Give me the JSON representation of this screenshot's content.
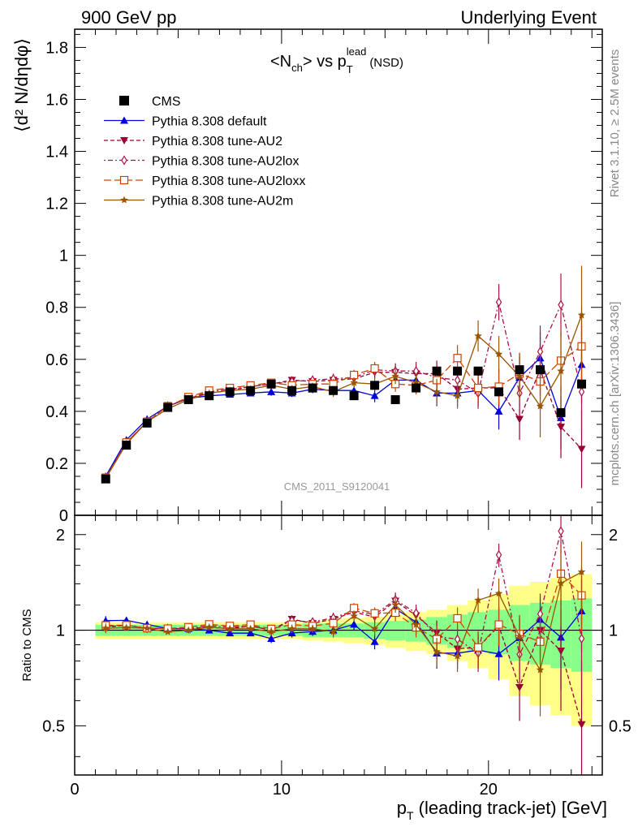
{
  "header": {
    "left": "900 GeV pp",
    "right": "Underlying Event"
  },
  "side_labels": {
    "rivet": "Rivet 3.1.10, ≥ 2.5M events",
    "mcplots": "mcplots.cern.ch [arXiv:1306.3436]"
  },
  "colors": {
    "cms": "#000000",
    "default": "#0000dd",
    "au2": "#990033",
    "au2lox": "#aa1144",
    "au2loxx": "#cc4400",
    "au2m": "#995500",
    "band_inner": "#88ff88",
    "band_outer": "#ffff88"
  },
  "chart_data": {
    "type": "line",
    "title_main": "<N",
    "title_sub": "ch",
    "title_mid": "> vs p",
    "title_sup": "lead",
    "title_sub2": "T",
    "title_tail": "(NSD)",
    "watermark": "CMS_2011_S9120041",
    "xlabel_main": "p",
    "xlabel_sub": "T",
    "xlabel_tail": " (leading track-jet) [GeV]",
    "ylabel": "⟨d² N/dηdφ⟩",
    "ratio_ylabel": "Ratio to CMS",
    "xlim": [
      0,
      25.5
    ],
    "ylim": [
      0,
      1.87
    ],
    "ratio_ylim": [
      0.35,
      2.3
    ],
    "log_ratio": true,
    "x_ticks": [
      0,
      10,
      20
    ],
    "y_ticks": [
      0,
      0.2,
      0.4,
      0.6,
      0.8,
      1,
      1.2,
      1.4,
      1.6,
      1.8
    ],
    "y_tick_labels": [
      "0",
      "0.2",
      "0.4",
      "0.6",
      "0.8",
      "1",
      "1.2",
      "1.4",
      "1.6",
      "1.8"
    ],
    "ratio_ticks": [
      0.5,
      1,
      2
    ],
    "ratio_tick_labels": [
      "0.5",
      "1",
      "2"
    ],
    "x": [
      1.5,
      2.5,
      3.5,
      4.5,
      5.5,
      6.5,
      7.5,
      8.5,
      9.5,
      10.5,
      11.5,
      12.5,
      13.5,
      14.5,
      15.5,
      16.5,
      17.5,
      18.5,
      19.5,
      20.5,
      21.5,
      22.5,
      23.5,
      24.5
    ],
    "cms": {
      "name": "CMS",
      "values": [
        0.14,
        0.27,
        0.355,
        0.415,
        0.445,
        0.46,
        0.475,
        0.48,
        0.505,
        0.48,
        0.49,
        0.48,
        0.46,
        0.5,
        0.445,
        0.49,
        0.555,
        0.555,
        0.555,
        0.475,
        0.56,
        0.56,
        0.395,
        0.505
      ],
      "band_inner": [
        0.04,
        0.04,
        0.04,
        0.04,
        0.04,
        0.04,
        0.04,
        0.04,
        0.04,
        0.04,
        0.05,
        0.05,
        0.05,
        0.06,
        0.07,
        0.08,
        0.1,
        0.12,
        0.14,
        0.16,
        0.2,
        0.22,
        0.24,
        0.26
      ],
      "band_outer": [
        0.06,
        0.06,
        0.06,
        0.06,
        0.06,
        0.06,
        0.06,
        0.06,
        0.06,
        0.06,
        0.07,
        0.08,
        0.09,
        0.1,
        0.12,
        0.14,
        0.16,
        0.2,
        0.24,
        0.3,
        0.38,
        0.42,
        0.46,
        0.5
      ]
    },
    "series": [
      {
        "name": "Pythia 8.308 default",
        "key": "default",
        "style": "solid",
        "marker": "triangle-up",
        "values": [
          0.15,
          0.29,
          0.37,
          0.42,
          0.45,
          0.46,
          0.465,
          0.47,
          0.475,
          0.47,
          0.485,
          0.48,
          0.48,
          0.46,
          0.52,
          0.52,
          0.47,
          0.47,
          0.48,
          0.4,
          0.53,
          0.605,
          0.375,
          0.58
        ],
        "err": [
          0.005,
          0.005,
          0.005,
          0.005,
          0.005,
          0.01,
          0.01,
          0.01,
          0.015,
          0.015,
          0.015,
          0.02,
          0.02,
          0.025,
          0.03,
          0.035,
          0.05,
          0.05,
          0.06,
          0.07,
          0.08,
          0.1,
          0.12,
          0.15
        ]
      },
      {
        "name": "Pythia 8.308 tune-AU2",
        "key": "au2",
        "style": "dashed",
        "marker": "triangle-down",
        "values": [
          0.143,
          0.28,
          0.36,
          0.42,
          0.45,
          0.47,
          0.48,
          0.495,
          0.505,
          0.52,
          0.515,
          0.52,
          0.525,
          0.55,
          0.55,
          0.545,
          0.545,
          0.485,
          0.49,
          0.49,
          0.37,
          0.56,
          0.34,
          0.255
        ],
        "err": [
          0.005,
          0.005,
          0.005,
          0.005,
          0.005,
          0.01,
          0.01,
          0.01,
          0.015,
          0.015,
          0.015,
          0.02,
          0.02,
          0.025,
          0.03,
          0.035,
          0.05,
          0.05,
          0.06,
          0.07,
          0.08,
          0.1,
          0.12,
          0.15
        ]
      },
      {
        "name": "Pythia 8.308 tune-AU2lox",
        "key": "au2lox",
        "style": "dashdot",
        "marker": "diamond",
        "values": [
          0.144,
          0.28,
          0.36,
          0.42,
          0.45,
          0.475,
          0.485,
          0.495,
          0.505,
          0.515,
          0.52,
          0.525,
          0.53,
          0.56,
          0.555,
          0.555,
          0.53,
          0.52,
          0.47,
          0.82,
          0.47,
          0.63,
          0.81,
          0.475
        ],
        "err": [
          0.005,
          0.005,
          0.005,
          0.005,
          0.005,
          0.01,
          0.01,
          0.01,
          0.015,
          0.015,
          0.015,
          0.02,
          0.02,
          0.025,
          0.03,
          0.035,
          0.05,
          0.05,
          0.06,
          0.07,
          0.08,
          0.1,
          0.12,
          0.15
        ]
      },
      {
        "name": "Pythia 8.308 tune-AU2loxx",
        "key": "au2loxx",
        "style": "longdash",
        "marker": "square-open",
        "values": [
          0.145,
          0.28,
          0.36,
          0.42,
          0.455,
          0.48,
          0.49,
          0.5,
          0.51,
          0.5,
          0.505,
          0.505,
          0.54,
          0.565,
          0.505,
          0.5,
          0.52,
          0.605,
          0.49,
          0.495,
          0.545,
          0.515,
          0.595,
          0.65
        ],
        "err": [
          0.005,
          0.005,
          0.005,
          0.005,
          0.005,
          0.01,
          0.01,
          0.01,
          0.015,
          0.015,
          0.015,
          0.02,
          0.02,
          0.025,
          0.03,
          0.035,
          0.05,
          0.05,
          0.06,
          0.07,
          0.08,
          0.1,
          0.12,
          0.15
        ]
      },
      {
        "name": "Pythia 8.308 tune-AU2m",
        "key": "au2m",
        "style": "solid",
        "marker": "star",
        "values": [
          0.142,
          0.275,
          0.36,
          0.41,
          0.445,
          0.47,
          0.48,
          0.485,
          0.5,
          0.485,
          0.495,
          0.475,
          0.51,
          0.505,
          0.535,
          0.51,
          0.475,
          0.46,
          0.69,
          0.62,
          0.535,
          0.42,
          0.555,
          0.77
        ],
        "err": [
          0.005,
          0.005,
          0.005,
          0.005,
          0.005,
          0.01,
          0.01,
          0.01,
          0.015,
          0.015,
          0.015,
          0.02,
          0.02,
          0.025,
          0.03,
          0.035,
          0.05,
          0.05,
          0.06,
          0.07,
          0.09,
          0.12,
          0.15,
          0.19
        ]
      }
    ]
  }
}
